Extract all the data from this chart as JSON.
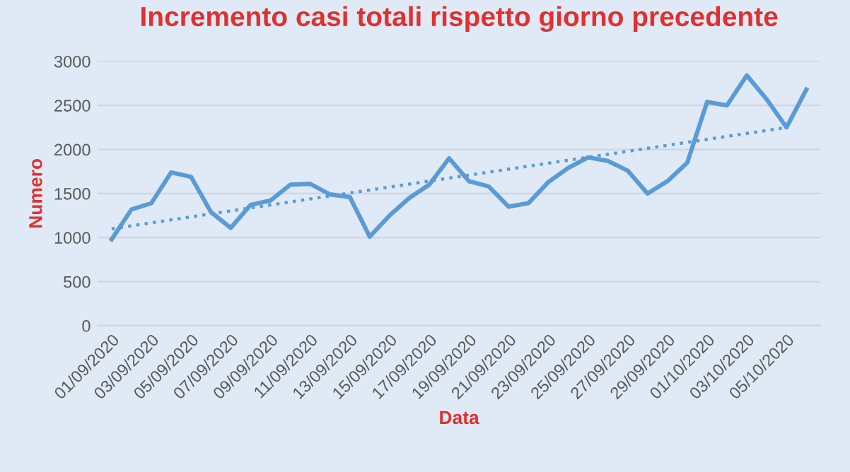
{
  "chart_data": {
    "type": "line",
    "title": "Incremento casi totali rispetto giorno precedente",
    "xlabel": "Data",
    "ylabel": "Numero",
    "categories": [
      "01/09/2020",
      null,
      "03/09/2020",
      null,
      "05/09/2020",
      null,
      "07/09/2020",
      null,
      "09/09/2020",
      null,
      "11/09/2020",
      null,
      "13/09/2020",
      null,
      "15/09/2020",
      null,
      "17/09/2020",
      null,
      "19/09/2020",
      null,
      "21/09/2020",
      null,
      "23/09/2020",
      null,
      "25/09/2020",
      null,
      "27/09/2020",
      null,
      "29/09/2020",
      null,
      "01/10/2020",
      null,
      "03/10/2020",
      null,
      "05/10/2020",
      null
    ],
    "series": [
      {
        "color": "#5b9bd5",
        "line_style": "solid",
        "values": [
          980,
          1320,
          1390,
          1740,
          1690,
          1290,
          1110,
          1370,
          1420,
          1600,
          1610,
          1490,
          1460,
          1010,
          1250,
          1450,
          1600,
          1900,
          1640,
          1580,
          1350,
          1390,
          1630,
          1790,
          1910,
          1870,
          1760,
          1500,
          1640,
          1850,
          2540,
          2500,
          2840,
          2570,
          2250,
          2680
        ]
      },
      {
        "color": "#5b9bd5",
        "line_style": "dotted",
        "x": [
          "01/09/2020",
          "05/10/2020"
        ],
        "values": [
          1100,
          2250
        ]
      }
    ],
    "ylim": [
      0,
      3000
    ],
    "yticks": [
      0,
      500,
      1000,
      1500,
      2000,
      2500,
      3000
    ],
    "grid": "y",
    "legend": false,
    "marker": "none"
  }
}
